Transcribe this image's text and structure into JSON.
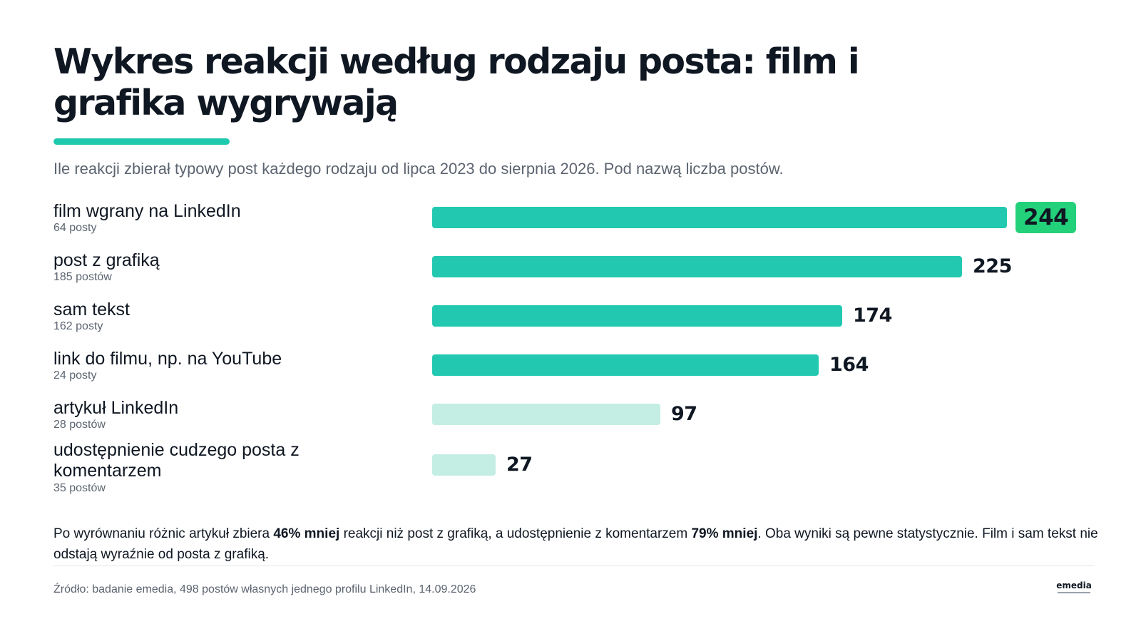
{
  "title": "Wykres reakcji według rodzaju posta: film i grafika wygrywają",
  "subtitle": "Ile reakcji zbierał typowy post każdego rodzaju od lipca 2023 do sierpnia 2026. Pod nazwą liczba postów.",
  "colors": {
    "accent": "#1fc9ae",
    "bar_main": "#22c9b0",
    "bar_light": "#c4ede3",
    "highlight": "#23d17a",
    "text": "#0f1722",
    "muted": "#5c6470"
  },
  "chart_data": {
    "type": "bar",
    "orientation": "horizontal",
    "categories": [
      "film wgrany na LinkedIn",
      "post z grafiką",
      "sam tekst",
      "link do filmu, np. na YouTube",
      "artykuł LinkedIn",
      "udostępnienie cudzego posta z komentarzem"
    ],
    "category_counts": [
      "64 posty",
      "185 postów",
      "162 posty",
      "24 posty",
      "28 postów",
      "35 postów"
    ],
    "values": [
      244,
      225,
      174,
      164,
      97,
      27
    ],
    "value_labels": [
      "244",
      "225",
      "174",
      "164",
      "97",
      "27"
    ],
    "highlighted_index": 0,
    "emphasis": [
      "strong",
      "strong",
      "strong",
      "strong",
      "light",
      "light"
    ],
    "xlim": [
      0,
      244
    ],
    "grid": false,
    "legend": "none"
  },
  "note": {
    "part1": "Po wyrównaniu różnic artykuł zbiera ",
    "bold1": "46% mniej",
    "part2": " reakcji niż post z grafiką, a udostępnienie z komentarzem ",
    "bold2": "79% mniej",
    "part3": ". Oba wyniki są pewne statystycznie. Film i sam tekst nie odstają wyraźnie od posta z grafiką."
  },
  "source": "Źródło: badanie emedia, 498 postów własnych jednego profilu LinkedIn, 14.09.2026",
  "logo": {
    "text": "emediа"
  }
}
